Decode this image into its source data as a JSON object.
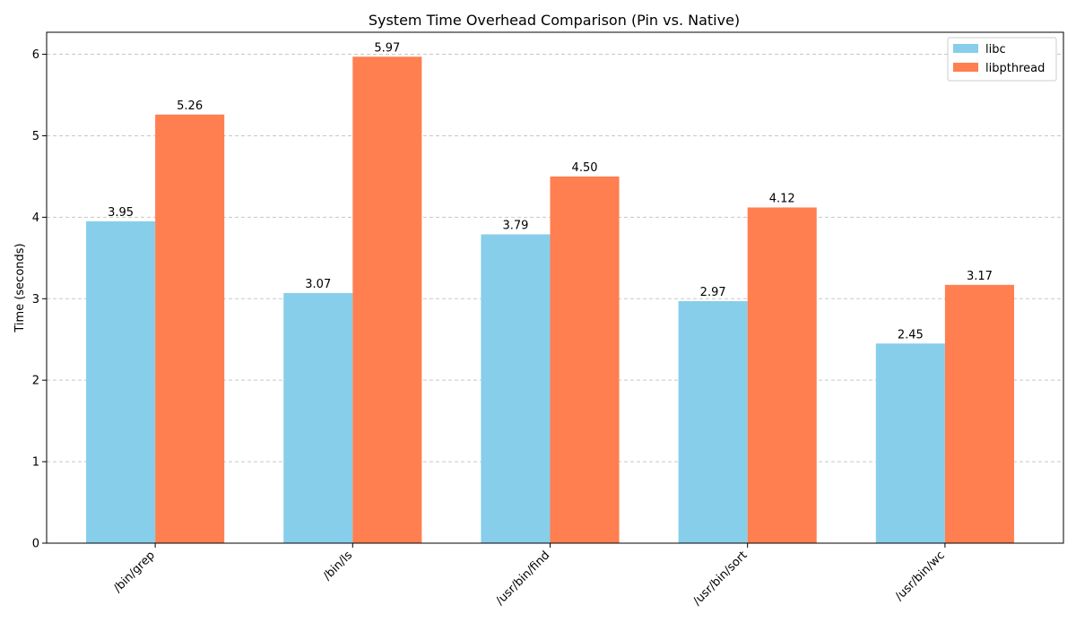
{
  "chart_data": {
    "type": "bar",
    "title": "System Time Overhead Comparison (Pin vs. Native)",
    "xlabel": "",
    "ylabel": "Time (seconds)",
    "categories": [
      "/bin/grep",
      "/bin/ls",
      "/usr/bin/find",
      "/usr/bin/sort",
      "/usr/bin/wc"
    ],
    "series": [
      {
        "name": "libc",
        "color": "#87ceeb",
        "values": [
          3.95,
          3.07,
          3.79,
          2.97,
          2.45
        ]
      },
      {
        "name": "libpthread",
        "color": "#ff7f50",
        "values": [
          5.26,
          5.97,
          4.5,
          4.12,
          3.17
        ]
      }
    ],
    "ylim": [
      0,
      6.27
    ],
    "yticks": [
      0,
      1,
      2,
      3,
      4,
      5,
      6
    ],
    "grid": {
      "axis": "y",
      "style": "dashed"
    },
    "legend_position": "top-right",
    "value_label_decimals": 2
  }
}
